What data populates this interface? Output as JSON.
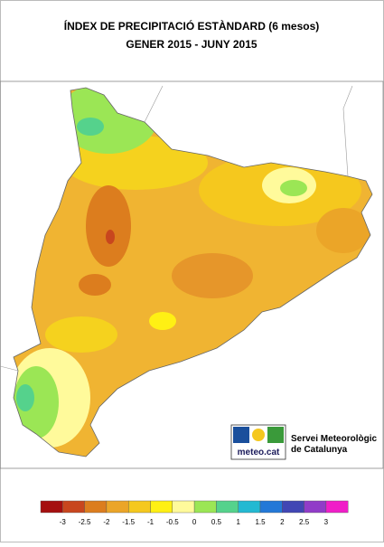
{
  "header": {
    "title": "ÍNDEX DE PRECIPITACIÓ ESTÀNDARD (6 mesos)",
    "subtitle": "GENER 2015 - JUNY 2015"
  },
  "logo": {
    "brand": "meteo.cat",
    "line1": "Servei Meteorològic",
    "line2": "de Catalunya"
  },
  "legend": {
    "colors": [
      "#a50f0f",
      "#c8461e",
      "#dc7d1e",
      "#eba528",
      "#f5c81e",
      "#fff014",
      "#fffa9b",
      "#9be655",
      "#55d28c",
      "#23b9d2",
      "#2378d7",
      "#4146b4",
      "#913cc8",
      "#f01ec8"
    ],
    "ticks": [
      -3,
      -2.5,
      -2,
      -1.5,
      -1,
      -0.5,
      0,
      0.5,
      1,
      1.5,
      2,
      2.5,
      3
    ]
  }
}
